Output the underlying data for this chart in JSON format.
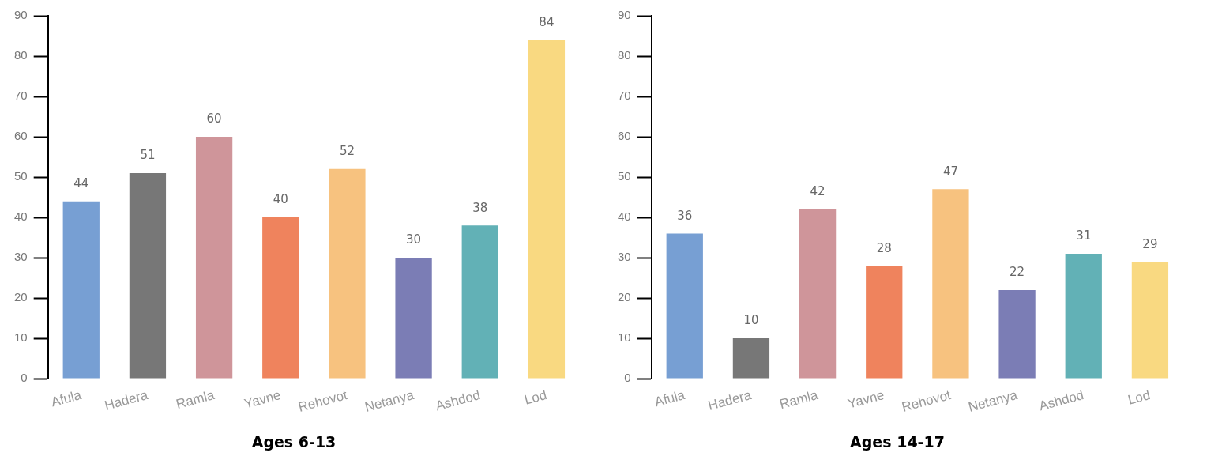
{
  "chart_data": [
    {
      "type": "bar",
      "title": "Ages 6-13",
      "categories": [
        "Afula",
        "Hadera",
        "Ramla",
        "Yavne",
        "Rehovot",
        "Netanya",
        "Ashdod",
        "Lod"
      ],
      "values": [
        44,
        51,
        60,
        40,
        52,
        30,
        38,
        84
      ],
      "colors": [
        "#779fd3",
        "#777777",
        "#cf959a",
        "#ef835d",
        "#f7c27f",
        "#7b7db5",
        "#62b1b6",
        "#f9d981"
      ],
      "ylim": [
        0,
        90
      ],
      "yticks": [
        0,
        10,
        20,
        30,
        40,
        50,
        60,
        70,
        80,
        90
      ],
      "grid": false,
      "legend": false,
      "data_labels": true
    },
    {
      "type": "bar",
      "title": "Ages 14-17",
      "categories": [
        "Afula",
        "Hadera",
        "Ramla",
        "Yavne",
        "Rehovot",
        "Netanya",
        "Ashdod",
        "Lod"
      ],
      "values": [
        36,
        10,
        42,
        28,
        47,
        22,
        31,
        29
      ],
      "colors": [
        "#779fd3",
        "#777777",
        "#cf959a",
        "#ef835d",
        "#f7c27f",
        "#7b7db5",
        "#62b1b6",
        "#f9d981"
      ],
      "ylim": [
        0,
        90
      ],
      "yticks": [
        0,
        10,
        20,
        30,
        40,
        50,
        60,
        70,
        80,
        90
      ],
      "grid": false,
      "legend": false,
      "data_labels": true
    }
  ]
}
